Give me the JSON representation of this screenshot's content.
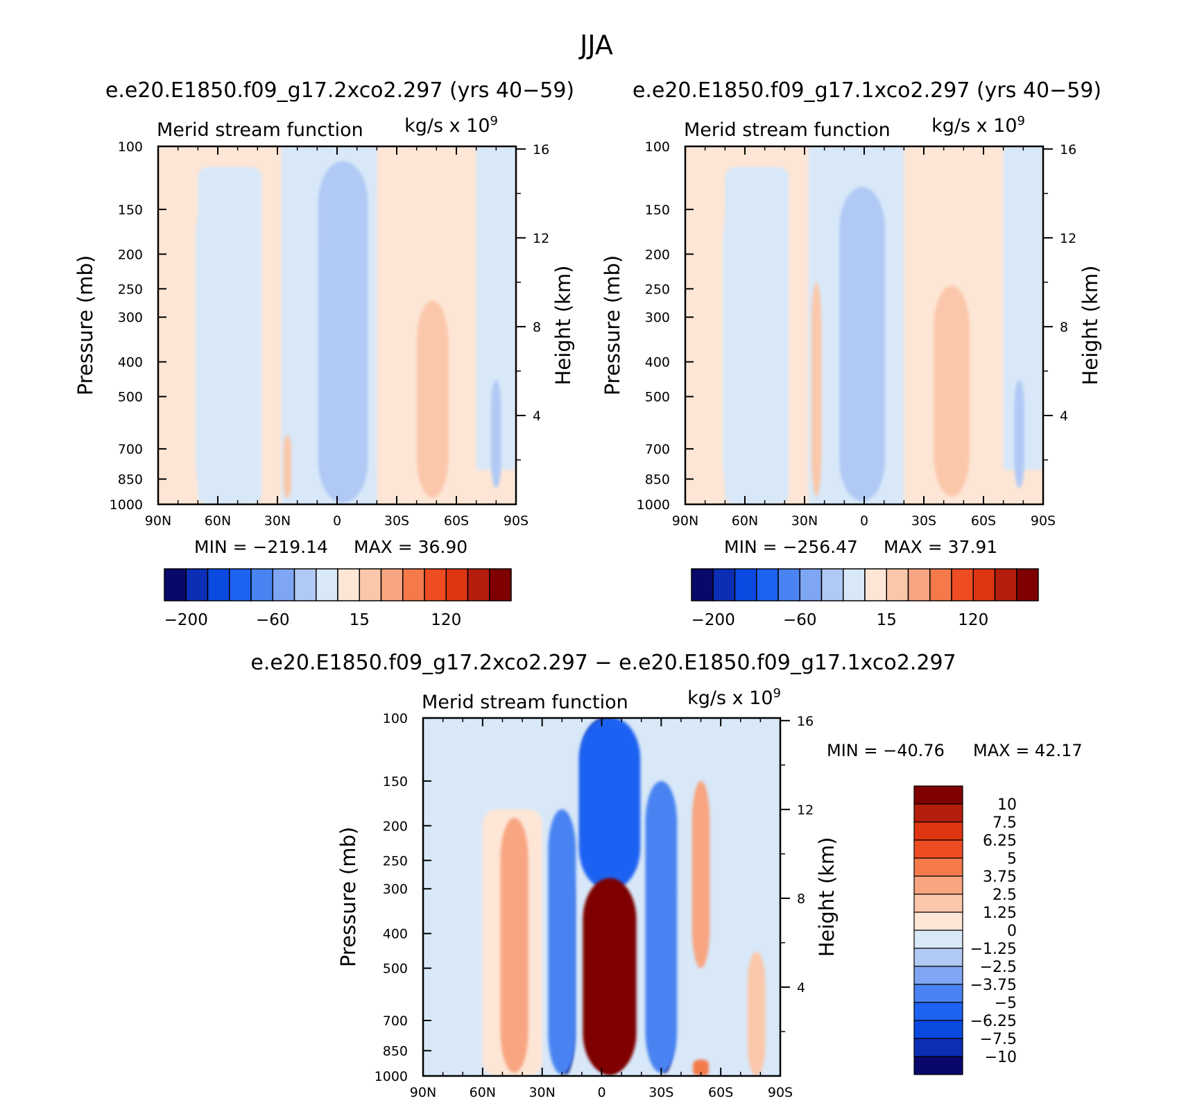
{
  "figure": {
    "title": "JJA",
    "difference_title": "e.e20.E1850.f09_g17.2xco2.297 − e.e20.E1850.f09_g17.1xco2.297"
  },
  "colors": {
    "abs_scale": [
      "#08086b",
      "#0b2eb5",
      "#0a4ae0",
      "#1e62f2",
      "#4a83f2",
      "#7ea6f2",
      "#b0c9f5",
      "#d8e8f8",
      "#fde6d6",
      "#fbc7aa",
      "#f8a582",
      "#f47a4c",
      "#ee4c22",
      "#de3512",
      "#b41e0c",
      "#7f0000"
    ],
    "diff_scale": [
      "#08086b",
      "#0b2eb5",
      "#0a4ae0",
      "#1e62f2",
      "#4a83f2",
      "#7ea6f2",
      "#b0c9f5",
      "#d8e8f8",
      "#fde6d6",
      "#fbc7aa",
      "#f8a582",
      "#f47a4c",
      "#ee4c22",
      "#de3512",
      "#b41e0c",
      "#7f0000"
    ]
  },
  "chart_data": [
    {
      "type": "heatmap",
      "title": "e.e20.E1850.f09_g17.2xco2.297 (yrs 40−59)",
      "left_string": "Merid stream function",
      "right_string": "kg/s x 10",
      "right_string_exp": "9",
      "xlabel": "",
      "ylabel": "Pressure (mb)",
      "ylabel_right": "Height (km)",
      "x_ticks": [
        "90N",
        "60N",
        "30N",
        "0",
        "30S",
        "60S",
        "90S"
      ],
      "y_ticks": [
        "100",
        "150",
        "200",
        "250",
        "300",
        "400",
        "500",
        "700",
        "850",
        "1000"
      ],
      "y_ticks_right": [
        "16",
        "12",
        "8",
        "4"
      ],
      "min_label": "MIN =  −219.14",
      "max_label": "MAX =    36.90",
      "colorbar_labels": [
        "−200",
        "−60",
        "15",
        "120"
      ],
      "features": [
        {
          "lat": 0,
          "p_top": 300,
          "p_bot": 780,
          "width": 7,
          "level": 0
        },
        {
          "lat": -1,
          "p_top": 260,
          "p_bot": 870,
          "width": 12,
          "level": 2
        },
        {
          "lat": -2,
          "p_top": 200,
          "p_bot": 930,
          "width": 17,
          "level": 4
        },
        {
          "lat": -3,
          "p_top": 150,
          "p_bot": 970,
          "width": 21,
          "level": 5
        },
        {
          "lat": -3,
          "p_top": 110,
          "p_bot": 990,
          "width": 25,
          "level": 6
        },
        {
          "lat": -48,
          "p_top": 340,
          "p_bot": 870,
          "width": 8,
          "level": 10
        },
        {
          "lat": -48,
          "p_top": 270,
          "p_bot": 960,
          "width": 16,
          "level": 9
        },
        {
          "lat": 58,
          "p_top": 135,
          "p_bot": 1000,
          "width": 26,
          "level": 7
        },
        {
          "lat": -80,
          "p_top": 450,
          "p_bot": 900,
          "width": 5,
          "level": 6
        },
        {
          "lat": 25,
          "p_top": 640,
          "p_bot": 960,
          "width": 4,
          "level": 9
        }
      ]
    },
    {
      "type": "heatmap",
      "title": "e.e20.E1850.f09_g17.1xco2.297 (yrs 40−59)",
      "left_string": "Merid stream function",
      "right_string": "kg/s x 10",
      "right_string_exp": "9",
      "xlabel": "",
      "ylabel": "Pressure (mb)",
      "ylabel_right": "Height (km)",
      "x_ticks": [
        "90N",
        "60N",
        "30N",
        "0",
        "30S",
        "60S",
        "90S"
      ],
      "y_ticks": [
        "100",
        "150",
        "200",
        "250",
        "300",
        "400",
        "500",
        "700",
        "850",
        "1000"
      ],
      "y_ticks_right": [
        "16",
        "12",
        "8",
        "4"
      ],
      "min_label": "MIN =  −256.47",
      "max_label": "MAX =    37.91",
      "colorbar_labels": [
        "−200",
        "−60",
        "15",
        "120"
      ],
      "features": [
        {
          "lat": 1,
          "p_top": 300,
          "p_bot": 820,
          "width": 8,
          "level": 0
        },
        {
          "lat": 1,
          "p_top": 230,
          "p_bot": 900,
          "width": 13,
          "level": 2
        },
        {
          "lat": 1,
          "p_top": 170,
          "p_bot": 950,
          "width": 18,
          "level": 4
        },
        {
          "lat": 1,
          "p_top": 130,
          "p_bot": 980,
          "width": 23,
          "level": 6
        },
        {
          "lat": -45,
          "p_top": 320,
          "p_bot": 860,
          "width": 9,
          "level": 10
        },
        {
          "lat": -44,
          "p_top": 245,
          "p_bot": 950,
          "width": 18,
          "level": 9
        },
        {
          "lat": 58,
          "p_top": 140,
          "p_bot": 1000,
          "width": 26,
          "level": 7
        },
        {
          "lat": 24,
          "p_top": 240,
          "p_bot": 950,
          "width": 5,
          "level": 9
        },
        {
          "lat": -78,
          "p_top": 450,
          "p_bot": 900,
          "width": 5,
          "level": 6
        }
      ]
    },
    {
      "type": "heatmap",
      "title": "e.e20.E1850.f09_g17.2xco2.297 − e.e20.E1850.f09_g17.1xco2.297",
      "left_string": "Merid stream function",
      "right_string": "kg/s x 10",
      "right_string_exp": "9",
      "xlabel": "",
      "ylabel": "Pressure (mb)",
      "ylabel_right": "Height (km)",
      "x_ticks": [
        "90N",
        "60N",
        "30N",
        "0",
        "30S",
        "60S",
        "90S"
      ],
      "y_ticks": [
        "100",
        "150",
        "200",
        "250",
        "300",
        "400",
        "500",
        "700",
        "850",
        "1000"
      ],
      "y_ticks_right": [
        "16",
        "12",
        "8",
        "4"
      ],
      "min_label": "MIN =  −40.76",
      "max_label": "MAX =    42.17",
      "colorbar_labels": [
        "10",
        "7.5",
        "6.25",
        "5",
        "3.75",
        "2.5",
        "1.25",
        "0",
        "−1.25",
        "−2.5",
        "−3.75",
        "−5",
        "−6.25",
        "−7.5",
        "−10"
      ],
      "features": [
        {
          "lat": -2,
          "p_top": 100,
          "p_bot": 260,
          "width": 24,
          "level": 0
        },
        {
          "lat": -4,
          "p_top": 100,
          "p_bot": 300,
          "width": 31,
          "level": 3
        },
        {
          "lat": -4,
          "p_top": 280,
          "p_bot": 990,
          "width": 27,
          "level": 15
        },
        {
          "lat": -4,
          "p_top": 290,
          "p_bot": 990,
          "width": 22,
          "level": 15
        },
        {
          "lat": 18,
          "p_top": 250,
          "p_bot": 990,
          "width": 8,
          "level": 0
        },
        {
          "lat": 20,
          "p_top": 180,
          "p_bot": 990,
          "width": 14,
          "level": 4
        },
        {
          "lat": -32,
          "p_top": 260,
          "p_bot": 980,
          "width": 8,
          "level": 0
        },
        {
          "lat": -30,
          "p_top": 150,
          "p_bot": 980,
          "width": 16,
          "level": 4
        },
        {
          "lat": 44,
          "p_top": 230,
          "p_bot": 960,
          "width": 7,
          "level": 12
        },
        {
          "lat": 44,
          "p_top": 190,
          "p_bot": 980,
          "width": 14,
          "level": 10
        },
        {
          "lat": -50,
          "p_top": 150,
          "p_bot": 500,
          "width": 9,
          "level": 10
        },
        {
          "lat": -78,
          "p_top": 450,
          "p_bot": 1000,
          "width": 9,
          "level": 9
        },
        {
          "lat": -50,
          "p_top": 900,
          "p_bot": 1000,
          "width": 8,
          "level": 11
        }
      ]
    }
  ]
}
